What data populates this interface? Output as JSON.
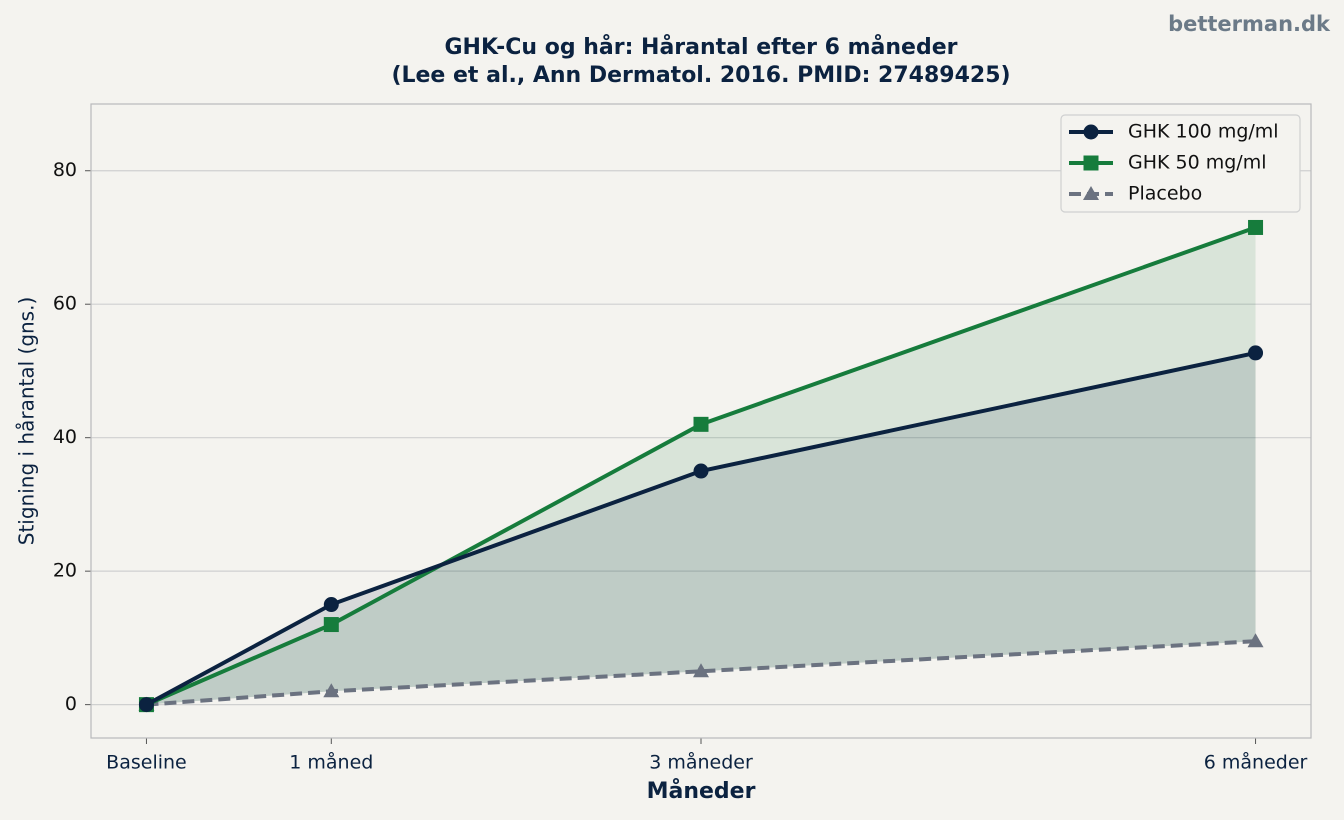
{
  "watermark": "betterman.dk",
  "chart_data": {
    "type": "line",
    "title": "GHK-Cu og hår: Hårantal efter 6 måneder",
    "subtitle": "(Lee et al., Ann Dermatol. 2016. PMID: 27489425)",
    "x_label": "Måneder",
    "y_label": "Stigning i hårantal (gns.)",
    "x": [
      0,
      1,
      3,
      6
    ],
    "xlim": [
      -0.3,
      6.3
    ],
    "xticks": [
      {
        "value": 0,
        "label": "Baseline"
      },
      {
        "value": 1,
        "label": "1 måned"
      },
      {
        "value": 3,
        "label": "3 måneder"
      },
      {
        "value": 6,
        "label": "6 måneder"
      }
    ],
    "ylim": [
      -5,
      90
    ],
    "yticks": [
      0,
      20,
      40,
      60,
      80
    ],
    "grid": true,
    "legend": "upper right",
    "series": [
      {
        "name": "GHK 100 mg/ml",
        "color": "#0b2240",
        "marker": "circle",
        "linestyle": "solid",
        "fill": true,
        "values": [
          0,
          15,
          35,
          52.7
        ]
      },
      {
        "name": "GHK 50 mg/ml",
        "color": "#167c3c",
        "marker": "square",
        "linestyle": "solid",
        "fill": true,
        "values": [
          0,
          12,
          42,
          71.5
        ]
      },
      {
        "name": "Placebo",
        "color": "#6b7280",
        "marker": "triangle",
        "linestyle": "dashed",
        "fill": false,
        "values": [
          0,
          2,
          5,
          9.5
        ]
      }
    ]
  }
}
